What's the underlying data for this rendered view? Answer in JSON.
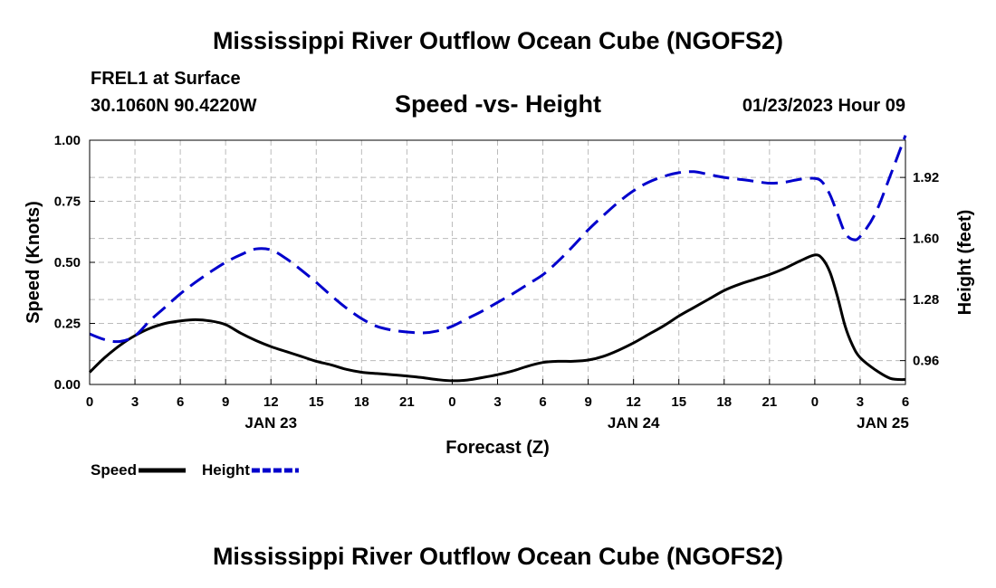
{
  "header": {
    "title": "Mississippi River Outflow Ocean Cube (NGOFS2)",
    "station": "FREL1 at Surface",
    "coords": "30.1060N  90.4220W",
    "subtitle": "Speed -vs- Height",
    "datetime": "01/23/2023 Hour 09"
  },
  "footer": {
    "title": "Mississippi River Outflow Ocean Cube (NGOFS2)"
  },
  "chart_data": {
    "type": "line",
    "title": "Speed -vs- Height",
    "xlabel": "Forecast (Z)",
    "ylabel": "Speed (Knots)",
    "y2label": "Height (feet)",
    "xlim": [
      0,
      54
    ],
    "ylim": [
      0,
      1.0
    ],
    "y2lim": [
      0.835,
      2.115
    ],
    "x_ticks": [
      0,
      3,
      6,
      9,
      12,
      15,
      18,
      21,
      24,
      27,
      30,
      33,
      36,
      39,
      42,
      45,
      48,
      51,
      54
    ],
    "x_tick_labels": [
      "0",
      "3",
      "6",
      "9",
      "12",
      "15",
      "18",
      "21",
      "0",
      "3",
      "6",
      "9",
      "12",
      "15",
      "18",
      "21",
      "0",
      "3",
      "6"
    ],
    "date_labels": [
      {
        "x": 12,
        "label": "JAN 23"
      },
      {
        "x": 36,
        "label": "JAN 24"
      },
      {
        "x": 52.5,
        "label": "JAN 25"
      }
    ],
    "y_ticks": [
      0.0,
      0.25,
      0.5,
      0.75,
      1.0
    ],
    "y_tick_labels": [
      "0.00",
      "0.25",
      "0.50",
      "0.75",
      "1.00"
    ],
    "y2_ticks": [
      0.96,
      1.28,
      1.6,
      1.92
    ],
    "y2_tick_labels": [
      "0.96",
      "1.28",
      "1.60",
      "1.92"
    ],
    "grid": true,
    "legend_position": "bottom-left",
    "series": [
      {
        "name": "Speed",
        "axis": "left",
        "color": "#000000",
        "dash": "solid",
        "x": [
          0,
          1,
          2,
          3,
          4,
          5,
          6,
          7,
          8,
          9,
          10,
          11,
          12,
          13,
          14,
          15,
          16,
          17,
          18,
          19,
          20,
          21,
          22,
          23,
          24,
          25,
          26,
          27,
          28,
          29,
          30,
          31,
          32,
          33,
          34,
          35,
          36,
          37,
          38,
          39,
          40,
          41,
          42,
          43,
          44,
          45,
          46,
          47,
          48,
          48.5,
          49,
          49.5,
          50,
          50.5,
          51,
          52,
          53,
          54
        ],
        "y": [
          0.05,
          0.11,
          0.16,
          0.2,
          0.23,
          0.25,
          0.26,
          0.265,
          0.26,
          0.245,
          0.21,
          0.18,
          0.155,
          0.135,
          0.115,
          0.095,
          0.08,
          0.062,
          0.05,
          0.045,
          0.04,
          0.035,
          0.028,
          0.02,
          0.015,
          0.018,
          0.028,
          0.04,
          0.055,
          0.075,
          0.09,
          0.095,
          0.095,
          0.1,
          0.115,
          0.14,
          0.17,
          0.205,
          0.24,
          0.28,
          0.315,
          0.35,
          0.385,
          0.41,
          0.43,
          0.45,
          0.475,
          0.505,
          0.53,
          0.515,
          0.46,
          0.36,
          0.24,
          0.16,
          0.11,
          0.06,
          0.025,
          0.02
        ]
      },
      {
        "name": "Height",
        "axis": "right",
        "color": "#0000cc",
        "dash": "dashed",
        "x": [
          0,
          1,
          2,
          3,
          4,
          5,
          6,
          7,
          8,
          9,
          10,
          11,
          12,
          13,
          14,
          15,
          16,
          17,
          18,
          19,
          20,
          21,
          22,
          23,
          24,
          25,
          26,
          27,
          28,
          29,
          30,
          31,
          32,
          33,
          34,
          35,
          36,
          37,
          38,
          39,
          40,
          41,
          42,
          43,
          44,
          45,
          46,
          47,
          48,
          48.5,
          49,
          49.5,
          50,
          50.5,
          51,
          52,
          53,
          54
        ],
        "y": [
          1.1,
          1.07,
          1.06,
          1.09,
          1.17,
          1.24,
          1.31,
          1.37,
          1.425,
          1.475,
          1.515,
          1.545,
          1.54,
          1.495,
          1.435,
          1.37,
          1.3,
          1.235,
          1.18,
          1.14,
          1.12,
          1.11,
          1.105,
          1.115,
          1.14,
          1.18,
          1.22,
          1.265,
          1.31,
          1.36,
          1.41,
          1.48,
          1.56,
          1.645,
          1.72,
          1.79,
          1.85,
          1.895,
          1.925,
          1.945,
          1.95,
          1.935,
          1.92,
          1.91,
          1.9,
          1.89,
          1.895,
          1.91,
          1.915,
          1.895,
          1.83,
          1.73,
          1.63,
          1.595,
          1.61,
          1.73,
          1.93,
          2.14
        ]
      }
    ]
  }
}
